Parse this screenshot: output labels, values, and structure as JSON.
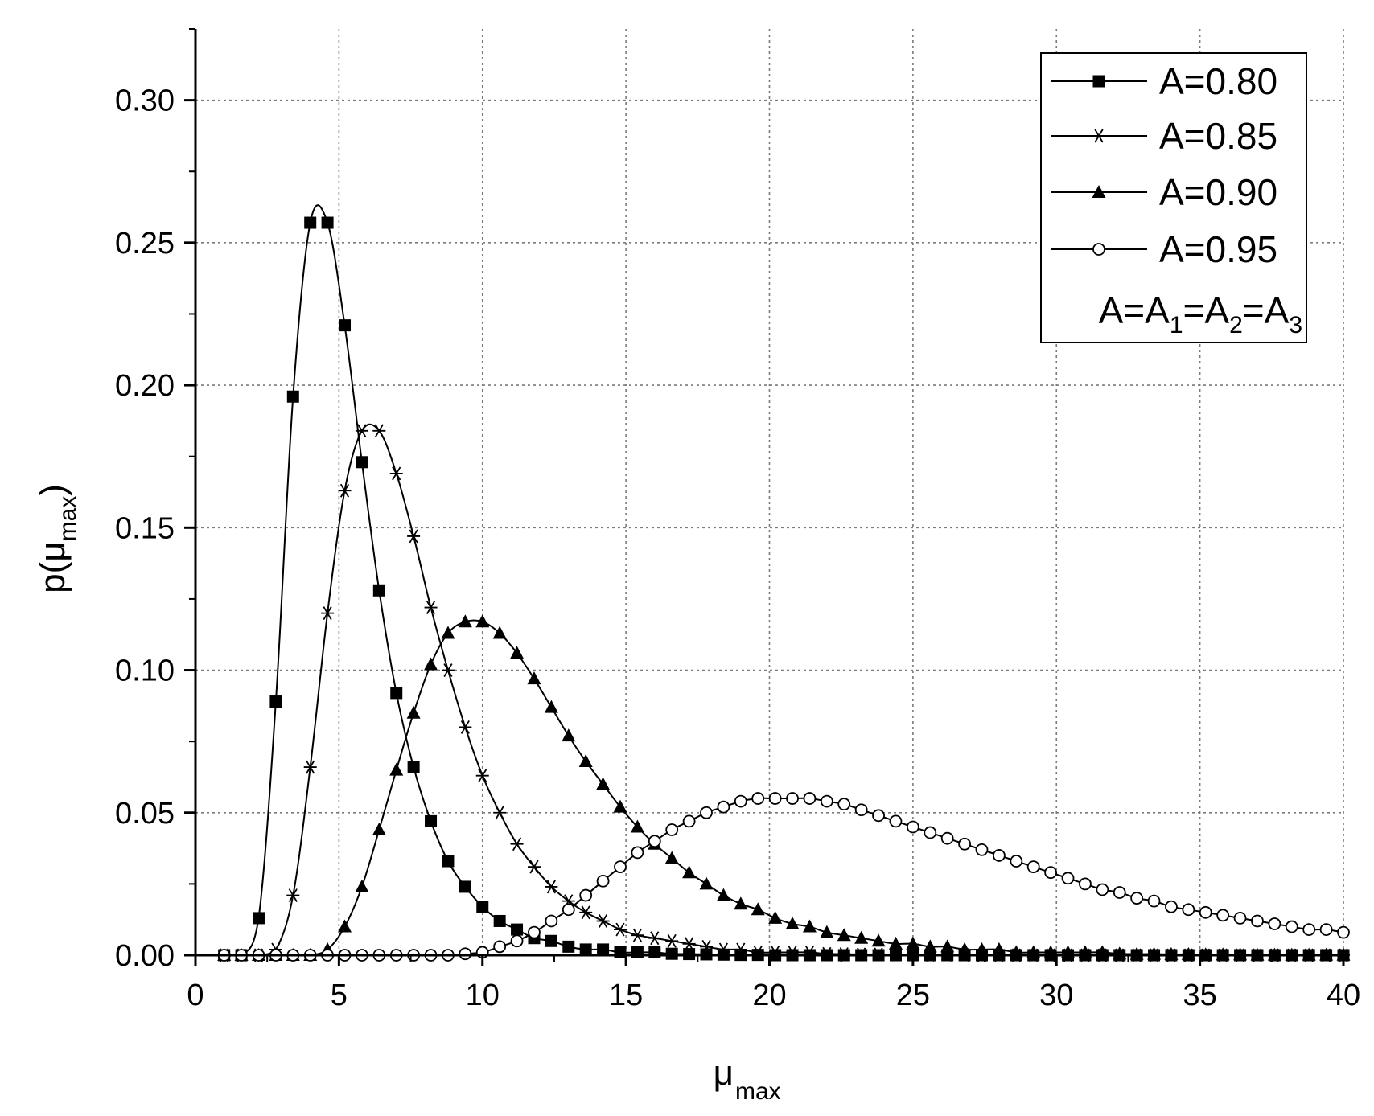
{
  "chart_data": {
    "type": "line",
    "xlabel": "μ",
    "xlabel_sub": "max",
    "ylabel_prefix": "p(μ",
    "ylabel_sub": "max",
    "ylabel_suffix": ")",
    "xlim": [
      0,
      40
    ],
    "ylim": [
      0,
      0.325
    ],
    "x_ticks": [
      0,
      5,
      10,
      15,
      20,
      25,
      30,
      35,
      40
    ],
    "x_tick_labels": [
      "0",
      "5",
      "10",
      "15",
      "20",
      "25",
      "30",
      "35",
      "40"
    ],
    "y_ticks": [
      0,
      0.05,
      0.1,
      0.15,
      0.2,
      0.25,
      0.3
    ],
    "y_tick_labels": [
      "0.00",
      "0.05",
      "0.10",
      "0.15",
      "0.20",
      "0.25",
      "0.30"
    ],
    "grid": true,
    "legend_position": "top-right",
    "legend_note": {
      "base": "A=A",
      "sub1": "1",
      "eq2": "=A",
      "sub2": "2",
      "eq3": "=A",
      "sub3": "3"
    },
    "series": [
      {
        "name": "A=0.80",
        "marker": "filled-square",
        "x": [
          1.0,
          1.6,
          2.2,
          2.8,
          3.4,
          4.0,
          4.6,
          5.2,
          5.8,
          6.4,
          7.0,
          7.6,
          8.2,
          8.8,
          9.4,
          10.0,
          10.6,
          11.2,
          11.8,
          12.4,
          13.0,
          13.6,
          14.2,
          14.8,
          15.4,
          16.0,
          16.6,
          17.2,
          17.8,
          18.4,
          19.0,
          19.6,
          20.2,
          20.8,
          21.4,
          22.0,
          22.6,
          23.2,
          23.8,
          24.4,
          25.0,
          25.6,
          26.2,
          26.8,
          27.4,
          28.0,
          28.6,
          29.2,
          29.8,
          30.4,
          31.0,
          31.6,
          32.2,
          32.8,
          33.4,
          34.0,
          34.6,
          35.2,
          35.8,
          36.4,
          37.0,
          37.6,
          38.2,
          38.8,
          39.4,
          40.0
        ],
        "y": [
          0.0,
          0.0,
          0.013,
          0.089,
          0.196,
          0.257,
          0.257,
          0.221,
          0.173,
          0.128,
          0.092,
          0.066,
          0.047,
          0.033,
          0.024,
          0.017,
          0.012,
          0.009,
          0.006,
          0.005,
          0.003,
          0.002,
          0.002,
          0.001,
          0.001,
          0.001,
          0.0005,
          0.0004,
          0.0003,
          0.0002,
          0.0001,
          0.0001,
          0.0,
          0.0,
          0.0,
          0.0,
          0.0,
          0.0,
          0.0,
          0.0,
          0.0,
          0.0,
          0.0,
          0.0,
          0.0,
          0.0,
          0.0,
          0.0,
          0.0,
          0.0,
          0.0,
          0.0,
          0.0,
          0.0,
          0.0,
          0.0,
          0.0,
          0.0,
          0.0,
          0.0,
          0.0,
          0.0,
          0.0,
          0.0,
          0.0,
          0.0
        ]
      },
      {
        "name": "A=0.85",
        "marker": "asterisk",
        "x": [
          1.0,
          1.6,
          2.2,
          2.8,
          3.4,
          4.0,
          4.6,
          5.2,
          5.8,
          6.4,
          7.0,
          7.6,
          8.2,
          8.8,
          9.4,
          10.0,
          10.6,
          11.2,
          11.8,
          12.4,
          13.0,
          13.6,
          14.2,
          14.8,
          15.4,
          16.0,
          16.6,
          17.2,
          17.8,
          18.4,
          19.0,
          19.6,
          20.2,
          20.8,
          21.4,
          22.0,
          22.6,
          23.2,
          23.8,
          24.4,
          25.0,
          25.6,
          26.2,
          26.8,
          27.4,
          28.0,
          28.6,
          29.2,
          29.8,
          30.4,
          31.0,
          31.6,
          32.2,
          32.8,
          33.4,
          34.0,
          34.6,
          35.2,
          35.8,
          36.4,
          37.0,
          37.6,
          38.2,
          38.8,
          39.4,
          40.0
        ],
        "y": [
          0.0,
          0.0,
          0.0,
          0.002,
          0.021,
          0.066,
          0.12,
          0.163,
          0.184,
          0.184,
          0.169,
          0.147,
          0.122,
          0.1,
          0.08,
          0.063,
          0.05,
          0.039,
          0.031,
          0.024,
          0.019,
          0.015,
          0.012,
          0.009,
          0.007,
          0.006,
          0.005,
          0.004,
          0.003,
          0.002,
          0.002,
          0.001,
          0.001,
          0.001,
          0.001,
          0.0005,
          0.0004,
          0.0003,
          0.0003,
          0.0002,
          0.0002,
          0.0001,
          0.0001,
          0.0001,
          0.0,
          0.0,
          0.0,
          0.0,
          0.0,
          0.0,
          0.0,
          0.0,
          0.0,
          0.0,
          0.0,
          0.0,
          0.0,
          0.0,
          0.0,
          0.0,
          0.0,
          0.0,
          0.0,
          0.0,
          0.0,
          0.0
        ]
      },
      {
        "name": "A=0.90",
        "marker": "filled-triangle",
        "x": [
          1.0,
          1.6,
          2.2,
          2.8,
          3.4,
          4.0,
          4.6,
          5.2,
          5.8,
          6.4,
          7.0,
          7.6,
          8.2,
          8.8,
          9.4,
          10.0,
          10.6,
          11.2,
          11.8,
          12.4,
          13.0,
          13.6,
          14.2,
          14.8,
          15.4,
          16.0,
          16.6,
          17.2,
          17.8,
          18.4,
          19.0,
          19.6,
          20.2,
          20.8,
          21.4,
          22.0,
          22.6,
          23.2,
          23.8,
          24.4,
          25.0,
          25.6,
          26.2,
          26.8,
          27.4,
          28.0,
          28.6,
          29.2,
          29.8,
          30.4,
          31.0,
          31.6,
          32.2,
          32.8,
          33.4,
          34.0,
          34.6,
          35.2,
          35.8,
          36.4,
          37.0,
          37.6,
          38.2,
          38.8,
          39.4,
          40.0
        ],
        "y": [
          0.0,
          0.0,
          0.0,
          0.0,
          0.0,
          0.0,
          0.002,
          0.01,
          0.024,
          0.044,
          0.065,
          0.085,
          0.102,
          0.113,
          0.117,
          0.117,
          0.113,
          0.106,
          0.097,
          0.087,
          0.077,
          0.068,
          0.06,
          0.052,
          0.045,
          0.039,
          0.034,
          0.029,
          0.025,
          0.021,
          0.018,
          0.016,
          0.013,
          0.011,
          0.01,
          0.008,
          0.007,
          0.006,
          0.005,
          0.004,
          0.004,
          0.003,
          0.003,
          0.002,
          0.002,
          0.002,
          0.001,
          0.001,
          0.001,
          0.001,
          0.001,
          0.001,
          0.0005,
          0.0004,
          0.0004,
          0.0003,
          0.0003,
          0.0002,
          0.0002,
          0.0002,
          0.0001,
          0.0001,
          0.0001,
          0.0001,
          0.0001,
          0.0001
        ]
      },
      {
        "name": "A=0.95",
        "marker": "open-circle",
        "x": [
          1.0,
          1.6,
          2.2,
          2.8,
          3.4,
          4.0,
          4.6,
          5.2,
          5.8,
          6.4,
          7.0,
          7.6,
          8.2,
          8.8,
          9.4,
          10.0,
          10.6,
          11.2,
          11.8,
          12.4,
          13.0,
          13.6,
          14.2,
          14.8,
          15.4,
          16.0,
          16.6,
          17.2,
          17.8,
          18.4,
          19.0,
          19.6,
          20.2,
          20.8,
          21.4,
          22.0,
          22.6,
          23.2,
          23.8,
          24.4,
          25.0,
          25.6,
          26.2,
          26.8,
          27.4,
          28.0,
          28.6,
          29.2,
          29.8,
          30.4,
          31.0,
          31.6,
          32.2,
          32.8,
          33.4,
          34.0,
          34.6,
          35.2,
          35.8,
          36.4,
          37.0,
          37.6,
          38.2,
          38.8,
          39.4,
          40.0
        ],
        "y": [
          0.0,
          0.0,
          0.0,
          0.0,
          0.0,
          0.0,
          0.0,
          0.0,
          0.0,
          0.0,
          0.0,
          0.0,
          0.0,
          0.0,
          0.0005,
          0.001,
          0.003,
          0.005,
          0.008,
          0.012,
          0.016,
          0.021,
          0.026,
          0.031,
          0.036,
          0.04,
          0.044,
          0.047,
          0.05,
          0.052,
          0.054,
          0.055,
          0.055,
          0.055,
          0.055,
          0.054,
          0.053,
          0.051,
          0.049,
          0.047,
          0.045,
          0.043,
          0.041,
          0.039,
          0.037,
          0.035,
          0.033,
          0.031,
          0.029,
          0.027,
          0.025,
          0.023,
          0.022,
          0.02,
          0.019,
          0.017,
          0.016,
          0.015,
          0.014,
          0.013,
          0.012,
          0.011,
          0.01,
          0.009,
          0.009,
          0.008
        ]
      }
    ]
  }
}
